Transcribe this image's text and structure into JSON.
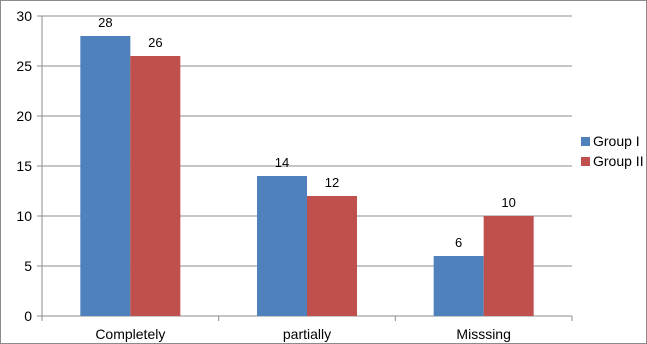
{
  "chart_data": {
    "type": "bar",
    "categories": [
      "Completely",
      "partially",
      "Misssing"
    ],
    "series": [
      {
        "name": "Group I",
        "values": [
          28,
          14,
          6
        ],
        "color": "#4f81bd"
      },
      {
        "name": "Group II",
        "values": [
          26,
          12,
          10
        ],
        "color": "#c0504d"
      }
    ],
    "ylim": [
      0,
      30
    ],
    "yticks": [
      0,
      5,
      10,
      15,
      20,
      25,
      30
    ],
    "grid": true,
    "legend_position": "right",
    "data_labels": true
  }
}
